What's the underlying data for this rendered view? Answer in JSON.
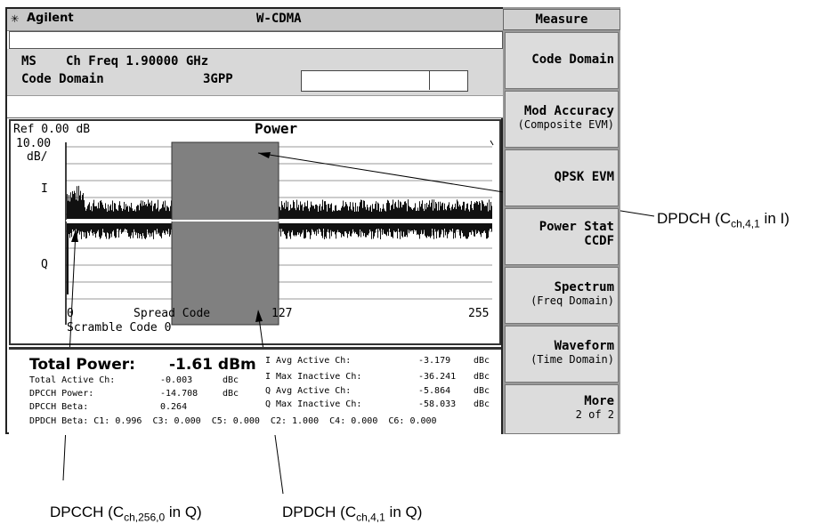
{
  "titlebar": {
    "brand": "Agilent",
    "mode": "W-CDMA"
  },
  "info": {
    "line1_label": "MS",
    "line1_value": "Ch Freq 1.90000 GHz",
    "line2_label": "Code Domain",
    "line2_value": "3GPP"
  },
  "graph": {
    "ref_label": "Ref 0.00 dB",
    "title": "Power",
    "scale_top": "10.00",
    "scale_unit": "dB/",
    "i_label": "I",
    "q_label": "Q",
    "x_start": "0",
    "x_mid_label": "Spread Code",
    "x_mid": "127",
    "x_end": "255",
    "scramble": "Scramble Code 0"
  },
  "results": {
    "total_power_label": "Total Power:",
    "total_power_value": "-1.61 dBm",
    "rows_left": [
      {
        "label": "Total Active Ch:",
        "value": "-0.003",
        "unit": "dBc"
      },
      {
        "label": "DPCCH Power:",
        "value": "-14.708",
        "unit": "dBc"
      },
      {
        "label": "DPCCH Beta:",
        "value": "0.264",
        "unit": ""
      }
    ],
    "rows_right": [
      {
        "label": "I Avg Active  Ch:",
        "value": "-3.179",
        "unit": "dBc"
      },
      {
        "label": "I Max Inactive Ch:",
        "value": "-36.241",
        "unit": "dBc"
      },
      {
        "label": "Q Avg Active  Ch:",
        "value": "-5.864",
        "unit": "dBc"
      },
      {
        "label": "Q Max Inactive Ch:",
        "value": "-58.033",
        "unit": "dBc"
      }
    ],
    "dpdch_beta": "DPDCH Beta: C1: 0.996  C3: 0.000  C5: 0.000  C2: 1.000  C4: 0.000  C6: 0.000"
  },
  "softkeys": {
    "menu_title": "Measure",
    "items": [
      {
        "line1": "Code Domain",
        "line2": ""
      },
      {
        "line1": "Mod Accuracy",
        "line2": "(Composite EVM)"
      },
      {
        "line1": "QPSK EVM",
        "line2": ""
      },
      {
        "line1": "Power Stat",
        "line2": "CCDF"
      },
      {
        "line1": "Spectrum",
        "line2": "(Freq Domain)"
      },
      {
        "line1": "Waveform",
        "line2": "(Time Domain)"
      },
      {
        "line1": "More",
        "line2": "2 of 2"
      }
    ]
  },
  "annotations": {
    "right": {
      "pre": "DPDCH (C",
      "sub": "ch,4,1",
      "post": " in I)"
    },
    "bottom_left": {
      "pre": "DPCCH (C",
      "sub": "ch,256,0",
      "post": " in Q)"
    },
    "bottom_right": {
      "pre": "DPDCH (C",
      "sub": "ch,4,1",
      "post": " in Q)"
    }
  }
}
